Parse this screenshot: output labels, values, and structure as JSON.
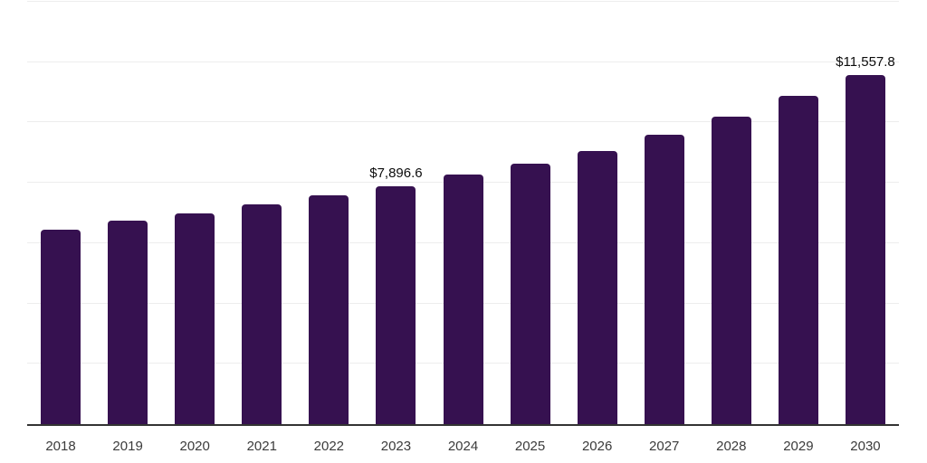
{
  "chart_data": {
    "type": "bar",
    "categories": [
      "2018",
      "2019",
      "2020",
      "2021",
      "2022",
      "2023",
      "2024",
      "2025",
      "2026",
      "2027",
      "2028",
      "2029",
      "2030"
    ],
    "values": [
      6455.0,
      6737.0,
      6985.0,
      7294.0,
      7591.0,
      7896.6,
      8265.0,
      8634.0,
      9063.0,
      9594.0,
      10193.0,
      10883.0,
      11557.8
    ],
    "data_labels": [
      {
        "category": "2023",
        "text": "$7,896.6"
      },
      {
        "category": "2030",
        "text": "$11,557.8"
      }
    ],
    "ylim": [
      0,
      14000
    ],
    "gridline_step": 2000,
    "grid": "horizontal-only",
    "legend": "none",
    "y_axis_tick_labels": "none",
    "colors": {
      "bar": "#361150",
      "axis_line": "#333333",
      "gridline": "#ededed",
      "tick_label": "#3b3b3b",
      "data_label": "#0c0c0c",
      "background": "#ffffff"
    }
  }
}
